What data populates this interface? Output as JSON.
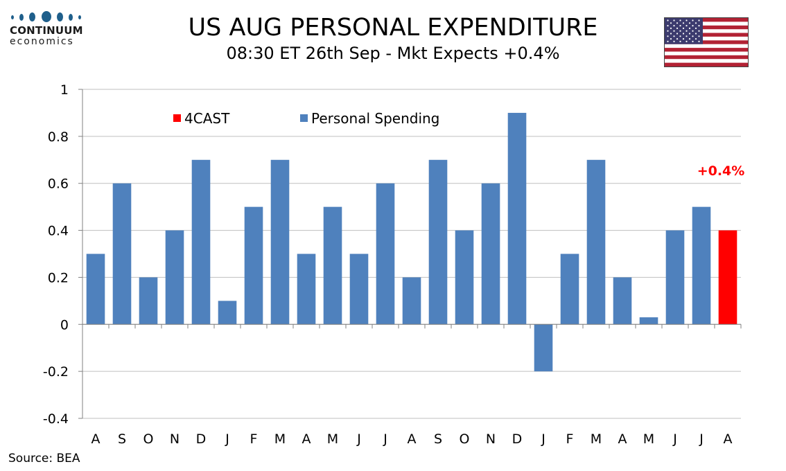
{
  "header": {
    "title": "US AUG PERSONAL EXPENDITURE",
    "subtitle": "08:30 ET 26th Sep - Mkt Expects +0.4%"
  },
  "logo": {
    "name": "CONTINUUM",
    "sub": "economics"
  },
  "flag": {
    "icon": "us-flag-icon"
  },
  "source": "Source: BEA",
  "colors": {
    "series": "#4f81bd",
    "forecast": "#ff0000",
    "grid": "#bfbfbf"
  },
  "chart_data": {
    "type": "bar",
    "categories": [
      "A",
      "S",
      "O",
      "N",
      "D",
      "J",
      "F",
      "M",
      "A",
      "M",
      "J",
      "J",
      "A",
      "S",
      "O",
      "N",
      "D",
      "J",
      "F",
      "M",
      "A",
      "M",
      "J",
      "J",
      "A"
    ],
    "series": [
      {
        "name": "Personal Spending",
        "values": [
          0.3,
          0.6,
          0.2,
          0.4,
          0.7,
          0.1,
          0.5,
          0.7,
          0.3,
          0.5,
          0.3,
          0.6,
          0.2,
          0.7,
          0.4,
          0.6,
          0.9,
          -0.2,
          0.3,
          0.7,
          0.2,
          0.03,
          0.4,
          0.5,
          null
        ]
      },
      {
        "name": "4CAST",
        "values": [
          null,
          null,
          null,
          null,
          null,
          null,
          null,
          null,
          null,
          null,
          null,
          null,
          null,
          null,
          null,
          null,
          null,
          null,
          null,
          null,
          null,
          null,
          null,
          null,
          0.4
        ]
      }
    ],
    "ylim": [
      -0.4,
      1
    ],
    "yticks": [
      1,
      0.8,
      0.6,
      0.4,
      0.2,
      0,
      -0.2,
      -0.4
    ],
    "ytick_labels": [
      "1",
      "0.8",
      "0.6",
      "0.4",
      "0.2",
      "0",
      "-0.2",
      "-0.4"
    ],
    "grid": true,
    "legend": [
      "4CAST",
      "Personal Spending"
    ],
    "legend_position": "top",
    "annotation": {
      "text": "+0.4%",
      "category_index": 24
    }
  }
}
